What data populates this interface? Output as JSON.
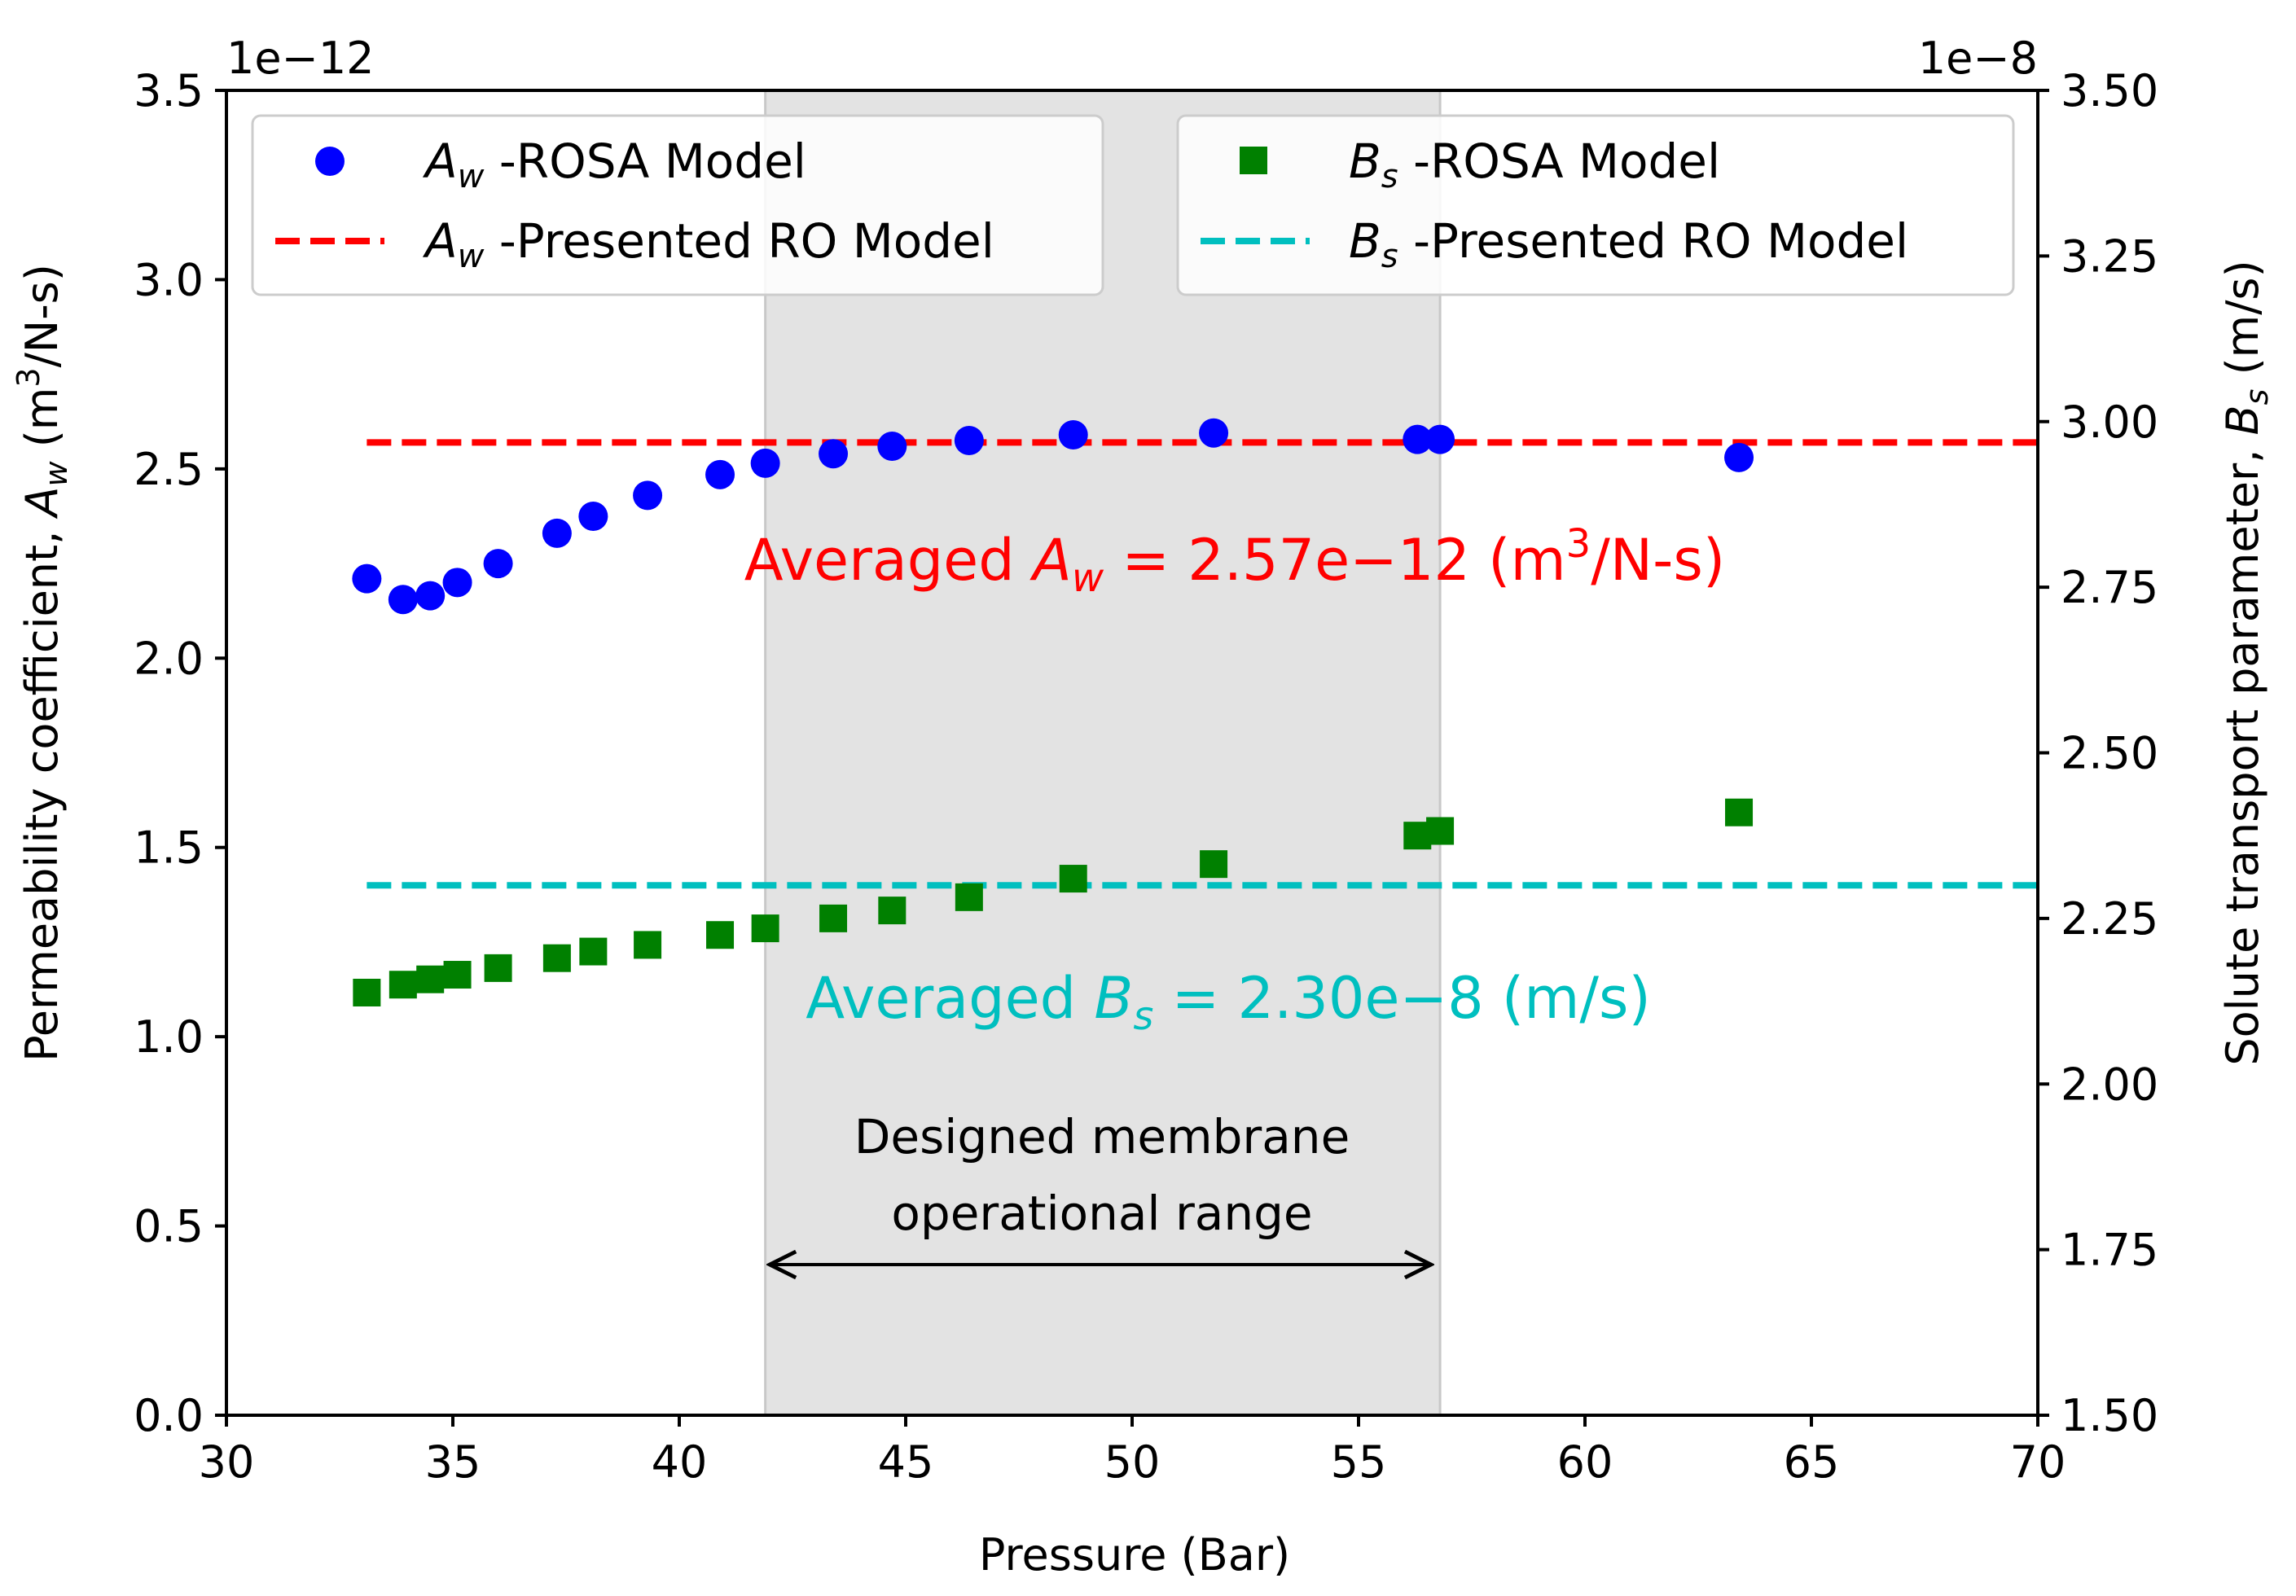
{
  "chart_data": {
    "type": "scatter",
    "x": [
      33.1,
      33.9,
      34.5,
      35.1,
      36.0,
      37.3,
      38.1,
      39.3,
      40.9,
      41.9,
      43.4,
      44.7,
      46.4,
      48.7,
      51.8,
      56.3,
      56.8,
      63.4
    ],
    "series": [
      {
        "name": "A_w -ROSA Model",
        "axis": "left",
        "marker": "circle",
        "color": "#0000ff",
        "values": [
          2.21,
          2.155,
          2.165,
          2.2,
          2.25,
          2.33,
          2.375,
          2.43,
          2.485,
          2.515,
          2.54,
          2.56,
          2.575,
          2.59,
          2.595,
          2.578,
          2.578,
          2.53
        ]
      },
      {
        "name": "B_s -ROSA Model",
        "axis": "right",
        "marker": "square",
        "color": "#008000",
        "values": [
          2.138,
          2.15,
          2.158,
          2.165,
          2.175,
          2.19,
          2.2,
          2.21,
          2.225,
          2.235,
          2.25,
          2.262,
          2.282,
          2.31,
          2.332,
          2.375,
          2.382,
          2.41
        ]
      }
    ],
    "lines": [
      {
        "name": "A_w -Presented RO Model",
        "axis": "left",
        "y": 2.57,
        "x_range": [
          33.1,
          70
        ],
        "color": "#ff0000",
        "dash": true
      },
      {
        "name": "B_s -Presented RO Model",
        "axis": "right",
        "y": 2.3,
        "x_range": [
          33.1,
          70
        ],
        "color": "#00bfbf",
        "dash": true
      }
    ],
    "shaded_region": {
      "x_range": [
        41.9,
        56.8
      ],
      "color": "#e3e3e3"
    },
    "xlabel": "Pressure (Bar)",
    "xlim": [
      30,
      70
    ],
    "xticks": [
      30,
      35,
      40,
      45,
      50,
      55,
      60,
      65,
      70
    ],
    "xtick_labels": [
      "30",
      "35",
      "40",
      "45",
      "50",
      "55",
      "60",
      "65",
      "70"
    ],
    "ylim_left": [
      0,
      3.5
    ],
    "yticks_left": [
      0.0,
      0.5,
      1.0,
      1.5,
      2.0,
      2.5,
      3.0,
      3.5
    ],
    "ytick_labels_left": [
      "0.0",
      "0.5",
      "1.0",
      "1.5",
      "2.0",
      "2.5",
      "3.0",
      "3.5"
    ],
    "offset_left": "1e−12",
    "ylabel_left": {
      "prefix": "Permeability coefficient, ",
      "var": "A",
      "sub": "w",
      "unit_pre": " (m",
      "sup": "3",
      "unit_post": "/N-s)"
    },
    "ylim_right": [
      1.5,
      3.5
    ],
    "yticks_right": [
      1.5,
      1.75,
      2.0,
      2.25,
      2.5,
      2.75,
      3.0,
      3.25,
      3.5
    ],
    "ytick_labels_right": [
      "1.50",
      "1.75",
      "2.00",
      "2.25",
      "2.50",
      "2.75",
      "3.00",
      "3.25",
      "3.50"
    ],
    "offset_right": "1e−8",
    "ylabel_right": {
      "prefix": "Solute transport parameter, ",
      "var": "B",
      "sub": "s",
      "unit": " (m/s)"
    },
    "legend_left": {
      "position": "top-left",
      "entries": [
        {
          "var": "A",
          "sub": "w",
          "label": " -ROSA Model"
        },
        {
          "var": "A",
          "sub": "w",
          "label": " -Presented RO Model"
        }
      ]
    },
    "legend_right": {
      "position": "top-right",
      "entries": [
        {
          "var": "B",
          "sub": "s",
          "label": " -ROSA Model"
        },
        {
          "var": "B",
          "sub": "s",
          "label": " -Presented RO Model"
        }
      ]
    },
    "annotations": {
      "aw_avg": {
        "prefix": "Averaged ",
        "var": "A",
        "sub": "w",
        "value": " = 2.57e−12 (m",
        "sup": "3",
        "unit_post": "/N-s)",
        "color": "#ff0000"
      },
      "bs_avg": {
        "prefix": "Averaged ",
        "var": "B",
        "sub": "s",
        "value": " = 2.30e−8 (m/s)",
        "color": "#00bfbf"
      },
      "range_line1": "Designed membrane",
      "range_line2": "operational range",
      "range_arrow": {
        "x_from": 42.0,
        "x_to": 56.6
      }
    }
  }
}
